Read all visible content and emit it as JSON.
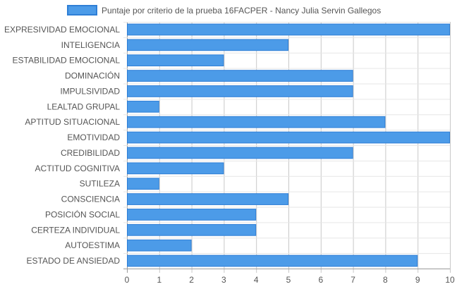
{
  "chart_data": {
    "type": "bar",
    "orientation": "horizontal",
    "legend": "top",
    "grid": true,
    "xlim": [
      0,
      10
    ],
    "x_ticks": [
      "0",
      "1",
      "2",
      "3",
      "4",
      "5",
      "6",
      "7",
      "8",
      "9",
      "10"
    ],
    "categories": [
      "EXPRESIVIDAD EMOCIONAL",
      "INTELIGENCIA",
      "ESTABILIDAD EMOCIONAL",
      "DOMINACIÓN",
      "IMPULSIVIDAD",
      "LEALTAD GRUPAL",
      "APTITUD SITUACIONAL",
      "EMOTIVIDAD",
      "CREDIBILIDAD",
      "ACTITUD COGNITIVA",
      "SUTILEZA",
      "CONSCIENCIA",
      "POSICIÓN SOCIAL",
      "CERTEZA INDIVIDUAL",
      "AUTOESTIMA",
      "ESTADO DE ANSIEDAD"
    ],
    "series": [
      {
        "name": "Puntaje por criterio de la prueba 16FACPER - Nancy Julia Servin Gallegos",
        "color": "#4c9be8",
        "border_color": "#2f7fd6",
        "values": [
          10,
          5,
          3,
          7,
          7,
          1,
          8,
          10,
          7,
          3,
          1,
          5,
          4,
          4,
          2,
          9
        ]
      }
    ]
  }
}
